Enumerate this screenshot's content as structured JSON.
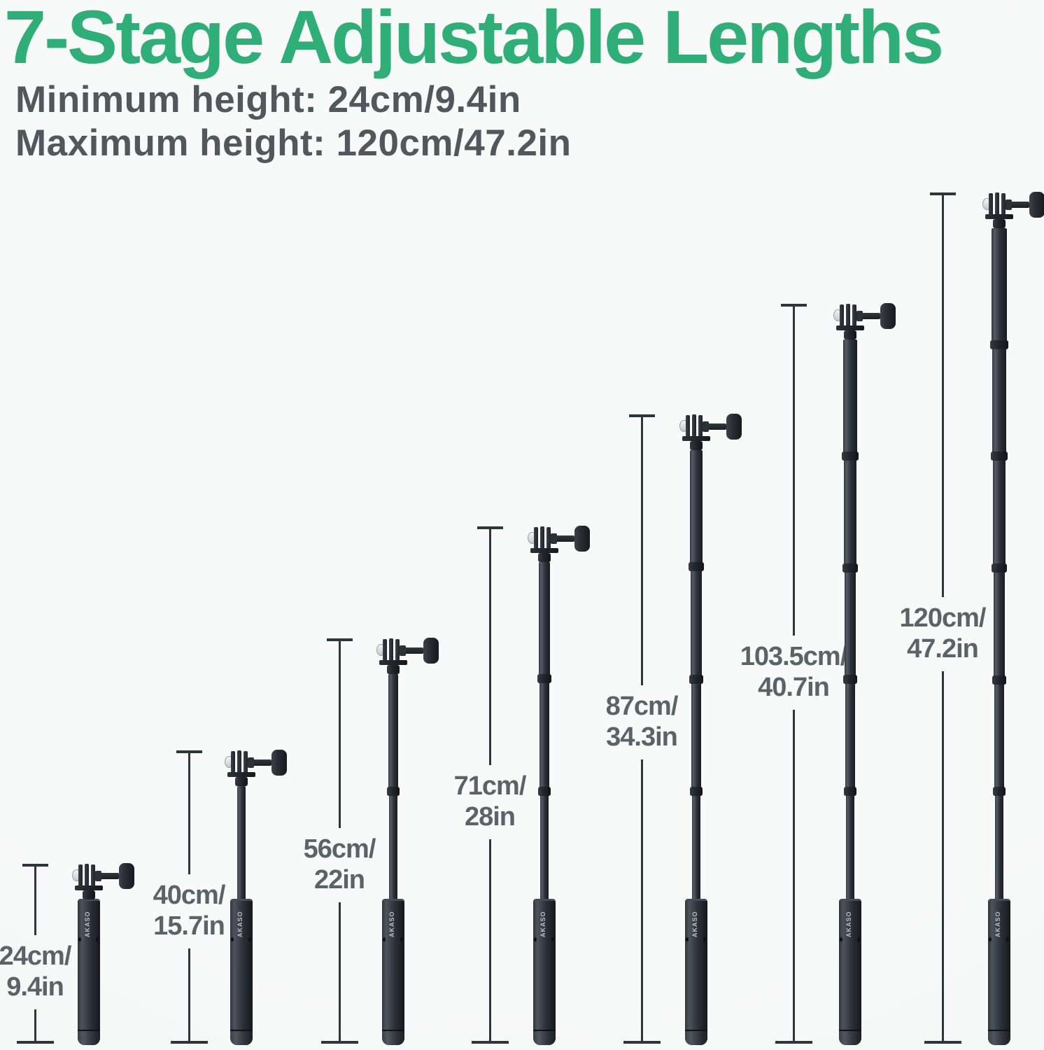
{
  "header": {
    "title": "7-Stage Adjustable Lengths",
    "min_line": "Minimum height: 24cm/9.4in",
    "max_line": "Maximum height: 120cm/47.2in"
  },
  "brand_text": "AKASO",
  "colors": {
    "title_green": "#2fae77",
    "subtitle_gray": "#51575c",
    "label_gray": "#5c6267",
    "dimension_line": "#30353a",
    "pole_dark": "#24272d",
    "background": "#f7f8f8"
  },
  "stages": [
    {
      "stage": 1,
      "cm": "24cm/",
      "inch": "9.4in",
      "extended_sections": 0
    },
    {
      "stage": 2,
      "cm": "40cm/",
      "inch": "15.7in",
      "extended_sections": 1
    },
    {
      "stage": 3,
      "cm": "56cm/",
      "inch": "22in",
      "extended_sections": 2
    },
    {
      "stage": 4,
      "cm": "71cm/",
      "inch": "28in",
      "extended_sections": 3
    },
    {
      "stage": 5,
      "cm": "87cm/",
      "inch": "34.3in",
      "extended_sections": 4
    },
    {
      "stage": 6,
      "cm": "103.5cm/",
      "inch": "40.7in",
      "extended_sections": 5
    },
    {
      "stage": 7,
      "cm": "120cm/",
      "inch": "47.2in",
      "extended_sections": 6
    }
  ]
}
